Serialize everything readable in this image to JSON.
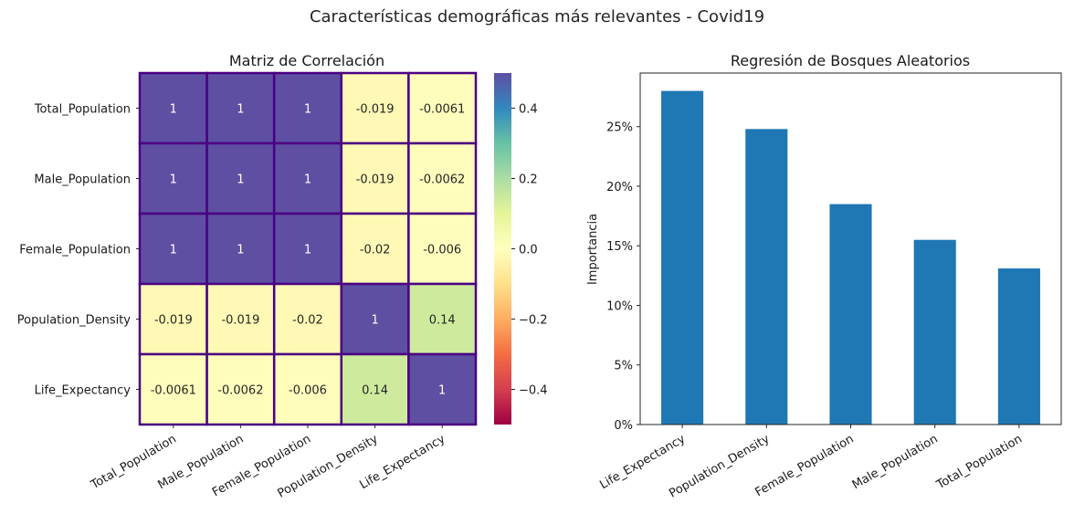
{
  "figure": {
    "suptitle": "Características demográficas más relevantes - Covid19"
  },
  "chart_data": [
    {
      "type": "heatmap",
      "title": "Matriz de Correlación",
      "labels": [
        "Total_Population",
        "Male_Population",
        "Female_Population",
        "Population_Density",
        "Life_Expectancy"
      ],
      "matrix": [
        [
          1,
          1,
          1,
          -0.019,
          -0.0061
        ],
        [
          1,
          1,
          1,
          -0.019,
          -0.0062
        ],
        [
          1,
          1,
          1,
          -0.02,
          -0.006
        ],
        [
          -0.019,
          -0.019,
          -0.02,
          1,
          0.14
        ],
        [
          -0.0061,
          -0.0062,
          -0.006,
          0.14,
          1
        ]
      ],
      "cell_labels": [
        [
          "1",
          "1",
          "1",
          "-0.019",
          "-0.0061"
        ],
        [
          "1",
          "1",
          "1",
          "-0.019",
          "-0.0062"
        ],
        [
          "1",
          "1",
          "1",
          "-0.02",
          "-0.006"
        ],
        [
          "-0.019",
          "-0.019",
          "-0.02",
          "1",
          "0.14"
        ],
        [
          "-0.0061",
          "-0.0062",
          "-0.006",
          "0.14",
          "1"
        ]
      ],
      "vmin": -0.5,
      "vmax": 0.5,
      "colormap": "Spectral",
      "colormap_stops": [
        "#9e0142",
        "#d53e4f",
        "#f46d43",
        "#fdae61",
        "#fee08b",
        "#ffffbf",
        "#e6f598",
        "#abdda4",
        "#66c2a5",
        "#3288bd",
        "#5e4fa2"
      ],
      "cell_border_color": "#4b0082",
      "colorbar_ticks": [
        0.4,
        0.2,
        0.0,
        -0.2,
        -0.4
      ],
      "colorbar_tick_labels": [
        "0.4",
        "0.2",
        "0.0",
        "−0.2",
        "−0.4"
      ],
      "xtick_rotation": 30
    },
    {
      "type": "bar",
      "title": "Regresión de Bosques Aleatorios",
      "ylabel": "Importancia",
      "categories": [
        "Life_Expectancy",
        "Population_Density",
        "Female_Population",
        "Male_Population",
        "Total_Population"
      ],
      "values": [
        0.28,
        0.248,
        0.185,
        0.155,
        0.131
      ],
      "ylim": [
        0,
        0.295
      ],
      "yticks": [
        0,
        0.05,
        0.1,
        0.15,
        0.2,
        0.25
      ],
      "ytick_labels": [
        "0%",
        "5%",
        "10%",
        "15%",
        "20%",
        "25%"
      ],
      "bar_color": "#1f77b4",
      "xtick_rotation": 30
    }
  ]
}
